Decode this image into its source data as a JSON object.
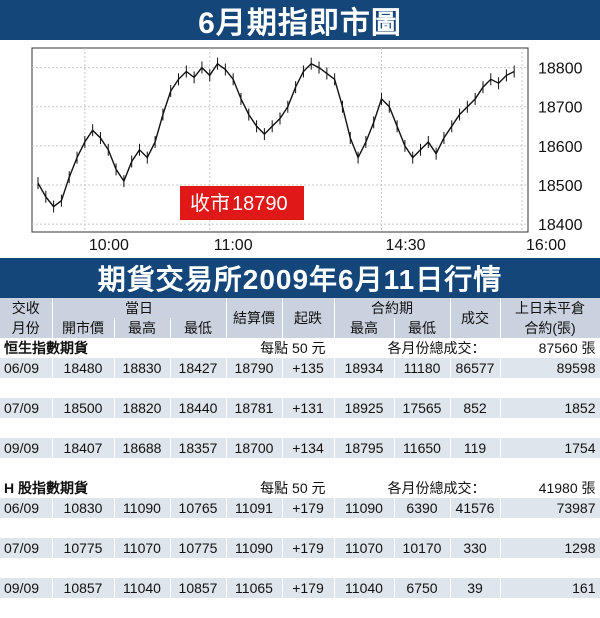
{
  "chart_title": "6月期指即市圖",
  "close_label": "收市",
  "close_value": "18790",
  "table_title": "期貨交易所2009年6月11日行情",
  "chart_data": {
    "type": "line",
    "x_tick_labels": [
      "10:00",
      "11:00",
      "14:30",
      "16:00"
    ],
    "y_tick_labels": [
      "18800",
      "18700",
      "18600",
      "18500",
      "18400"
    ],
    "ylim": [
      18380,
      18850
    ],
    "points": [
      [
        0,
        18505
      ],
      [
        1,
        18470
      ],
      [
        2,
        18445
      ],
      [
        3,
        18460
      ],
      [
        4,
        18520
      ],
      [
        5,
        18570
      ],
      [
        6,
        18610
      ],
      [
        7,
        18640
      ],
      [
        8,
        18620
      ],
      [
        9,
        18590
      ],
      [
        10,
        18540
      ],
      [
        11,
        18510
      ],
      [
        12,
        18560
      ],
      [
        13,
        18590
      ],
      [
        14,
        18570
      ],
      [
        15,
        18610
      ],
      [
        16,
        18680
      ],
      [
        17,
        18740
      ],
      [
        18,
        18770
      ],
      [
        19,
        18790
      ],
      [
        20,
        18775
      ],
      [
        21,
        18800
      ],
      [
        22,
        18780
      ],
      [
        23,
        18810
      ],
      [
        24,
        18795
      ],
      [
        25,
        18770
      ],
      [
        26,
        18720
      ],
      [
        27,
        18680
      ],
      [
        28,
        18650
      ],
      [
        29,
        18630
      ],
      [
        30,
        18650
      ],
      [
        31,
        18670
      ],
      [
        32,
        18700
      ],
      [
        33,
        18750
      ],
      [
        34,
        18790
      ],
      [
        35,
        18810
      ],
      [
        36,
        18800
      ],
      [
        37,
        18785
      ],
      [
        38,
        18770
      ],
      [
        39,
        18700
      ],
      [
        40,
        18620
      ],
      [
        41,
        18570
      ],
      [
        42,
        18610
      ],
      [
        43,
        18660
      ],
      [
        44,
        18720
      ],
      [
        45,
        18700
      ],
      [
        46,
        18650
      ],
      [
        47,
        18600
      ],
      [
        48,
        18570
      ],
      [
        49,
        18590
      ],
      [
        50,
        18610
      ],
      [
        51,
        18580
      ],
      [
        52,
        18620
      ],
      [
        53,
        18650
      ],
      [
        54,
        18680
      ],
      [
        55,
        18700
      ],
      [
        56,
        18720
      ],
      [
        57,
        18750
      ],
      [
        58,
        18770
      ],
      [
        59,
        18760
      ],
      [
        60,
        18780
      ],
      [
        61,
        18790
      ]
    ]
  },
  "table": {
    "group_headers": {
      "month_top": "交收",
      "month_bottom": "月份",
      "day": "當日",
      "settle": "結算價",
      "change": "起跌",
      "contract": "合約期",
      "volume": "成交",
      "oi_top": "上日未平倉",
      "oi_bottom": "合約(張)"
    },
    "sub_headers": {
      "open": "開市價",
      "high": "最高",
      "low": "最低",
      "c_high": "最高",
      "c_low": "最低"
    },
    "sections": [
      {
        "name": "恒生指數期貨",
        "unit": "每點 50 元",
        "total_label": "各月份總成交：",
        "total_value": "87560 張",
        "rows": [
          {
            "month": "06/09",
            "open": "18480",
            "high": "18830",
            "low": "18427",
            "settle": "18790",
            "change": "+135",
            "c_high": "18934",
            "c_low": "11180",
            "volume": "86577",
            "oi": "89598"
          },
          {
            "month": "07/09",
            "open": "18500",
            "high": "18820",
            "low": "18440",
            "settle": "18781",
            "change": "+131",
            "c_high": "18925",
            "c_low": "17565",
            "volume": "852",
            "oi": "1852"
          },
          {
            "month": "09/09",
            "open": "18407",
            "high": "18688",
            "low": "18357",
            "settle": "18700",
            "change": "+134",
            "c_high": "18795",
            "c_low": "11650",
            "volume": "119",
            "oi": "1754"
          }
        ]
      },
      {
        "name": "H 股指數期貨",
        "unit": "每點 50 元",
        "total_label": "各月份總成交：",
        "total_value": "41980 張",
        "rows": [
          {
            "month": "06/09",
            "open": "10830",
            "high": "11090",
            "low": "10765",
            "settle": "11091",
            "change": "+179",
            "c_high": "11090",
            "c_low": "6390",
            "volume": "41576",
            "oi": "73987"
          },
          {
            "month": "07/09",
            "open": "10775",
            "high": "11070",
            "low": "10775",
            "settle": "11090",
            "change": "+179",
            "c_high": "11070",
            "c_low": "10170",
            "volume": "330",
            "oi": "1298"
          },
          {
            "month": "09/09",
            "open": "10857",
            "high": "11040",
            "low": "10857",
            "settle": "11065",
            "change": "+179",
            "c_high": "11040",
            "c_low": "6750",
            "volume": "39",
            "oi": "161"
          }
        ]
      }
    ]
  }
}
